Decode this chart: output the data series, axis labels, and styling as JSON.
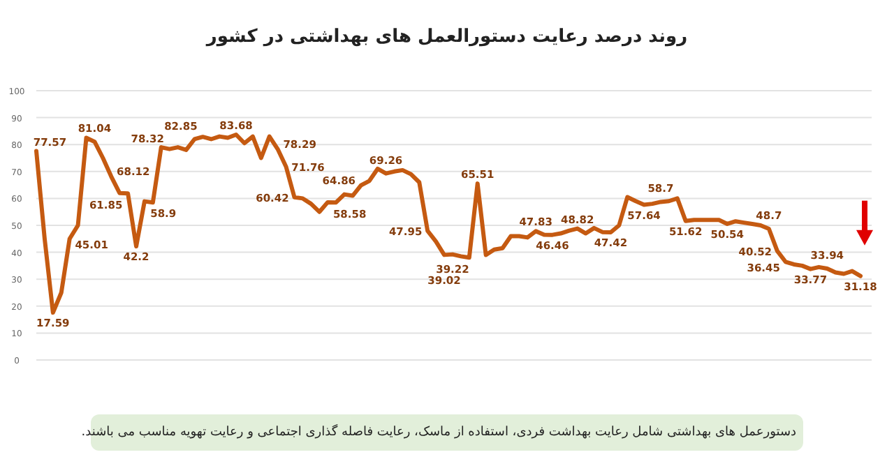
{
  "chart_data": {
    "type": "line",
    "title": "روند درصد رعایت دستورالعمل های بهداشتی در کشور",
    "annotations": [
      "دستورعمل های بهداشتی شامل رعایت بهداشت فردی، استفاده از ماسک، رعایت فاصله گذاری اجتماعی و رعایت تهویه مناسب می باشند."
    ],
    "categories": [
      null,
      null,
      null,
      null,
      null,
      null,
      null,
      null,
      null,
      null,
      null,
      null,
      null,
      null,
      null,
      null,
      null,
      null,
      null,
      null,
      null,
      null,
      null,
      null,
      null,
      null,
      null,
      null,
      null,
      null,
      null,
      null,
      null,
      null,
      null,
      null,
      null,
      null,
      null,
      null,
      null,
      null,
      null,
      null,
      null,
      null,
      null,
      null,
      null,
      null,
      null,
      null,
      null,
      null,
      null,
      null,
      null,
      null,
      null,
      null,
      null,
      null,
      null,
      null,
      null,
      null,
      null,
      null,
      null,
      null,
      null,
      null,
      null,
      null,
      null,
      null,
      null,
      null,
      null,
      null,
      null,
      null,
      null,
      null,
      null,
      null,
      null,
      null,
      null,
      null,
      null,
      null,
      null,
      null,
      null,
      null,
      null,
      null,
      null,
      null
    ],
    "series": [
      {
        "color": "#c55a11",
        "values": [
          77.57,
          45,
          17.59,
          25,
          45.01,
          50,
          82.5,
          81.04,
          75,
          68.12,
          62,
          61.85,
          42.2,
          58.9,
          58.5,
          79,
          78.32,
          79,
          78,
          82,
          82.85,
          82,
          83,
          82.5,
          83.68,
          80.5,
          83,
          75,
          83,
          78.29,
          71.76,
          60.42,
          60,
          58,
          55,
          58.58,
          58.5,
          61.5,
          61,
          64.86,
          66.5,
          71,
          69.26,
          70,
          70.5,
          69,
          66,
          47.95,
          44,
          39.02,
          39.22,
          38.5,
          38,
          65.51,
          39,
          41,
          41.5,
          46,
          46,
          45.5,
          47.83,
          46.5,
          46.46,
          47,
          48,
          48.82,
          47,
          49,
          47.5,
          47.42,
          50,
          60.5,
          59,
          57.64,
          58,
          58.7,
          59,
          60,
          51.62,
          52,
          52,
          52,
          52,
          50.54,
          51.5,
          51,
          50.5,
          50,
          48.7,
          40.52,
          36.45,
          35.5,
          35,
          33.77,
          34.5,
          33.94,
          32.5,
          32,
          33,
          31.18
        ],
        "value_labels": [
          "77.57",
          null,
          "17.59",
          null,
          "45.01",
          null,
          null,
          "81.04",
          null,
          "68.12",
          null,
          "61.85",
          "42.2",
          "58.9",
          null,
          null,
          "78.32",
          null,
          null,
          null,
          "82.85",
          null,
          null,
          null,
          "83.68",
          null,
          null,
          null,
          null,
          "78.29",
          "71.76",
          "60.42",
          null,
          null,
          null,
          "58.58",
          null,
          null,
          null,
          "64.86",
          null,
          null,
          "69.26",
          null,
          null,
          null,
          null,
          "47.95",
          null,
          "39.02",
          "39.22",
          null,
          null,
          "65.51",
          null,
          null,
          null,
          null,
          null,
          null,
          "47.83",
          null,
          "46.46",
          null,
          null,
          "48.82",
          null,
          null,
          null,
          "47.42",
          null,
          null,
          null,
          "57.64",
          null,
          "58.7",
          null,
          null,
          "51.62",
          null,
          null,
          null,
          null,
          "50.54",
          null,
          null,
          null,
          null,
          "48.7",
          "40.52",
          "36.45",
          null,
          null,
          "33.77",
          null,
          "33.94",
          null,
          null,
          null,
          "31.18"
        ]
      }
    ],
    "ylim": [
      0,
      100
    ],
    "yticks": [
      0,
      10,
      20,
      30,
      40,
      50,
      60,
      70,
      80,
      90,
      100
    ],
    "grid": "y",
    "marker": "none",
    "line_style": "solid"
  }
}
